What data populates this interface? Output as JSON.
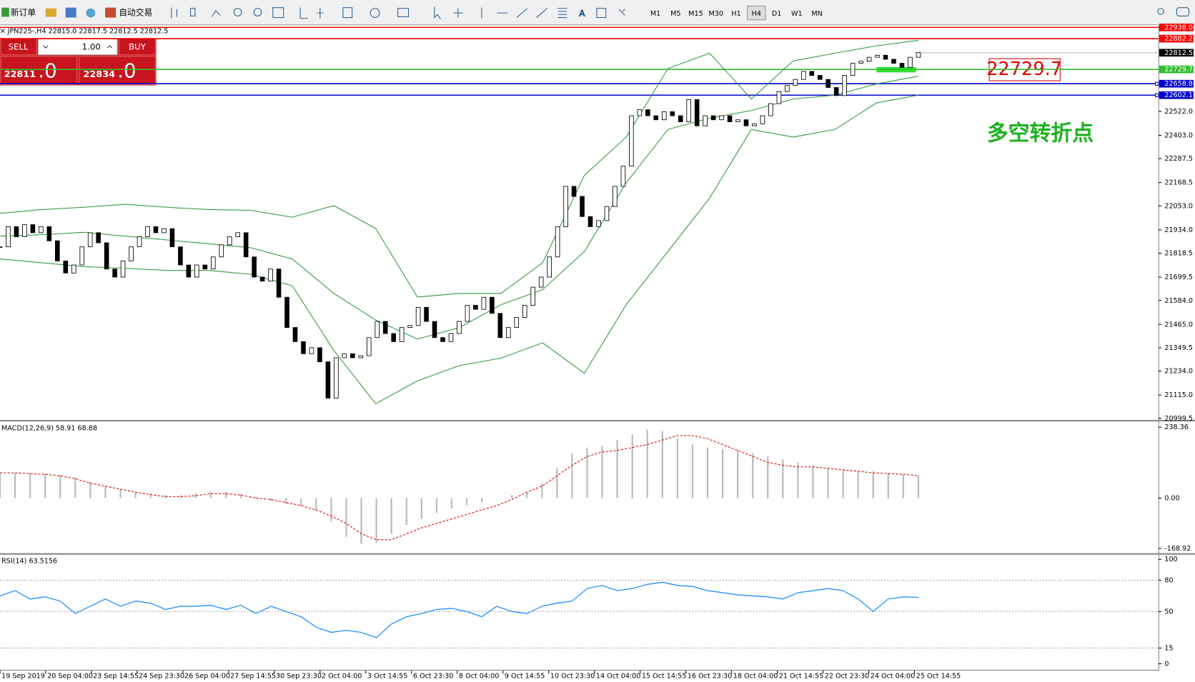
{
  "toolbar": {
    "new_order": "新订单",
    "auto_trading": "自动交易",
    "timeframes": [
      "M1",
      "M5",
      "M15",
      "M30",
      "H1",
      "H4",
      "D1",
      "W1",
      "MN"
    ],
    "active_timeframe": "H4"
  },
  "trade_panel": {
    "sell": "SELL",
    "buy": "BUY",
    "lots": "1.00",
    "sell_price_main": "22811",
    "sell_price_decimal": ".0",
    "buy_price_main": "22834",
    "buy_price_decimal": ".0"
  },
  "chart_data": {
    "type": "candlestick",
    "title": "JPN225-,H4  22815.0 22817.5 22812.5 22812.5",
    "close": [
      21850,
      21950,
      21900,
      21960,
      21920,
      21950,
      21880,
      21780,
      21720,
      21760,
      21850,
      21920,
      21870,
      21740,
      21700,
      21780,
      21850,
      21900,
      21950,
      21920,
      21940,
      21850,
      21760,
      21700,
      21760,
      21740,
      21800,
      21860,
      21900,
      21920,
      21800,
      21700,
      21680,
      21740,
      21600,
      21450,
      21380,
      21320,
      21350,
      21280,
      21100,
      21300,
      21320,
      21300,
      21310,
      21400,
      21480,
      21420,
      21380,
      21450,
      21460,
      21550,
      21480,
      21400,
      21380,
      21420,
      21480,
      21560,
      21540,
      21600,
      21520,
      21400,
      21450,
      21500,
      21560,
      21650,
      21700,
      21800,
      21950,
      22150,
      22100,
      22000,
      21950,
      21980,
      22050,
      22150,
      22250,
      22500,
      22530,
      22500,
      22480,
      22520,
      22500,
      22470,
      22580,
      22450,
      22500,
      22480,
      22500,
      22470,
      22480,
      22450,
      22460,
      22500,
      22560,
      22620,
      22650,
      22680,
      22720,
      22700,
      22680,
      22640,
      22600,
      22700,
      22760,
      22770,
      22790,
      22800,
      22780,
      22760,
      22740,
      22790,
      22812.5
    ],
    "bands": [
      {
        "name": "upper",
        "color": "#2e9a3e",
        "values": [
          22016,
          22035,
          22046,
          22061,
          22046,
          22035,
          22031,
          21997,
          22054,
          21941,
          21601,
          21619,
          21619,
          21771,
          22205,
          22394,
          22734,
          22810,
          22583,
          22772,
          22810,
          22847,
          22874
        ]
      },
      {
        "name": "middle",
        "color": "#2e9a3e",
        "values": [
          21903,
          21910,
          21922,
          21903,
          21884,
          21865,
          21846,
          21790,
          21619,
          21487,
          21393,
          21449,
          21563,
          21638,
          21827,
          22167,
          22432,
          22488,
          22526,
          22583,
          22602,
          22658,
          22696
        ]
      },
      {
        "name": "lower",
        "color": "#2e9a3e",
        "values": [
          21790,
          21771,
          21752,
          21744,
          21733,
          21733,
          21714,
          21657,
          21336,
          21072,
          21185,
          21261,
          21298,
          21374,
          21223,
          21563,
          21827,
          22092,
          22432,
          22394,
          22432,
          22564,
          22602
        ]
      }
    ],
    "ylim": [
      20992,
      22953
    ],
    "yticks": [
      22938.0,
      {
        "value": 22522,
        "label": "22522.0"
      },
      {
        "value": 22403,
        "label": "22403.0"
      },
      22287.5,
      22168.5,
      {
        "value": 22053,
        "label": "22053.0"
      },
      {
        "value": 21934,
        "label": "21934.0"
      },
      21818.5,
      21699.5,
      {
        "value": 21584,
        "label": "21584.0"
      },
      {
        "value": 21465,
        "label": "21465.0"
      },
      21349.5,
      {
        "value": 21234,
        "label": "21234.0"
      },
      {
        "value": 21115,
        "label": "21115.0"
      },
      20999.5
    ],
    "levels": [
      {
        "value": 22938,
        "label": "22938.0",
        "color": "#ff0000"
      },
      {
        "value": 22882.2,
        "label": "22882.2",
        "color": "#ff0000"
      },
      {
        "value": 22812.5,
        "label": "22812.5",
        "color": "#000000"
      },
      {
        "value": 22729.7,
        "label": "22729.7",
        "color": "#2fbf2f"
      },
      {
        "value": 22658.8,
        "label": "22658.8",
        "color": "#0000cc"
      },
      {
        "value": 22602.1,
        "label": "22602.1",
        "color": "#0000cc"
      }
    ],
    "annotations": [
      "22729.7",
      "多空转折点"
    ],
    "time_labels": [
      "19 Sep 2019",
      "20 Sep 04:00",
      "23 Sep 14:55",
      "24 Sep 23:30",
      "26 Sep 04:00",
      "27 Sep 14:55",
      "30 Sep 23:30",
      "2 Oct 04:00",
      "3 Oct 14:55",
      "6 Oct 23:30",
      "8 Oct 04:00",
      "9 Oct 14:55",
      "10 Oct 23:30",
      "14 Oct 04:00",
      "15 Oct 14:55",
      "16 Oct 23:30",
      "18 Oct 04:00",
      "21 Oct 14:55",
      "22 Oct 23:30",
      "24 Oct 04:00",
      "25 Oct 14:55"
    ],
    "macd": {
      "title": "MACD(12,26,9) 58.91 68.88",
      "histogram": [
        85,
        85,
        84,
        82,
        78,
        70,
        55,
        40,
        30,
        20,
        15,
        10,
        10,
        15,
        22,
        20,
        15,
        5,
        -10,
        -20,
        -25,
        -40,
        -80,
        -130,
        -155,
        -150,
        -120,
        -90,
        -70,
        -50,
        -35,
        -25,
        -15,
        0,
        10,
        20,
        50,
        100,
        150,
        170,
        175,
        195,
        215,
        230,
        225,
        200,
        180,
        170,
        165,
        160,
        150,
        140,
        130,
        120,
        110,
        100,
        95,
        90,
        90,
        85,
        80,
        78
      ],
      "signal": [
        85,
        85,
        82,
        80,
        75,
        65,
        50,
        40,
        30,
        20,
        12,
        5,
        5,
        8,
        15,
        15,
        10,
        0,
        -5,
        -15,
        -25,
        -40,
        -60,
        -85,
        -120,
        -140,
        -140,
        -120,
        -100,
        -85,
        -70,
        -55,
        -40,
        -25,
        -5,
        20,
        40,
        75,
        110,
        140,
        155,
        160,
        170,
        180,
        195,
        210,
        210,
        200,
        180,
        160,
        140,
        120,
        110,
        105,
        105,
        100,
        95,
        90,
        85,
        82,
        80,
        75
      ],
      "signal_color": "#e00000",
      "ylim": [
        -175,
        245
      ],
      "yticks": [
        238.36,
        {
          "value": 0,
          "label": "0.00"
        },
        -168.92
      ]
    },
    "rsi": {
      "title": "RSI(14) 63.5156",
      "color": "#1e90ff",
      "values": [
        65,
        70,
        62,
        64,
        60,
        48,
        55,
        62,
        55,
        60,
        58,
        52,
        55,
        55,
        56,
        52,
        56,
        48,
        55,
        50,
        45,
        35,
        30,
        32,
        30,
        25,
        38,
        45,
        48,
        52,
        53,
        50,
        45,
        55,
        50,
        48,
        55,
        58,
        60,
        72,
        75,
        70,
        72,
        76,
        78,
        75,
        74,
        70,
        68,
        66,
        65,
        64,
        62,
        68,
        70,
        72,
        70,
        62,
        50,
        62,
        64,
        63.5156
      ],
      "ylim": [
        0,
        100
      ],
      "yticks": [
        100,
        80,
        50,
        15,
        0
      ],
      "levels": [
        80,
        50,
        15
      ]
    }
  }
}
